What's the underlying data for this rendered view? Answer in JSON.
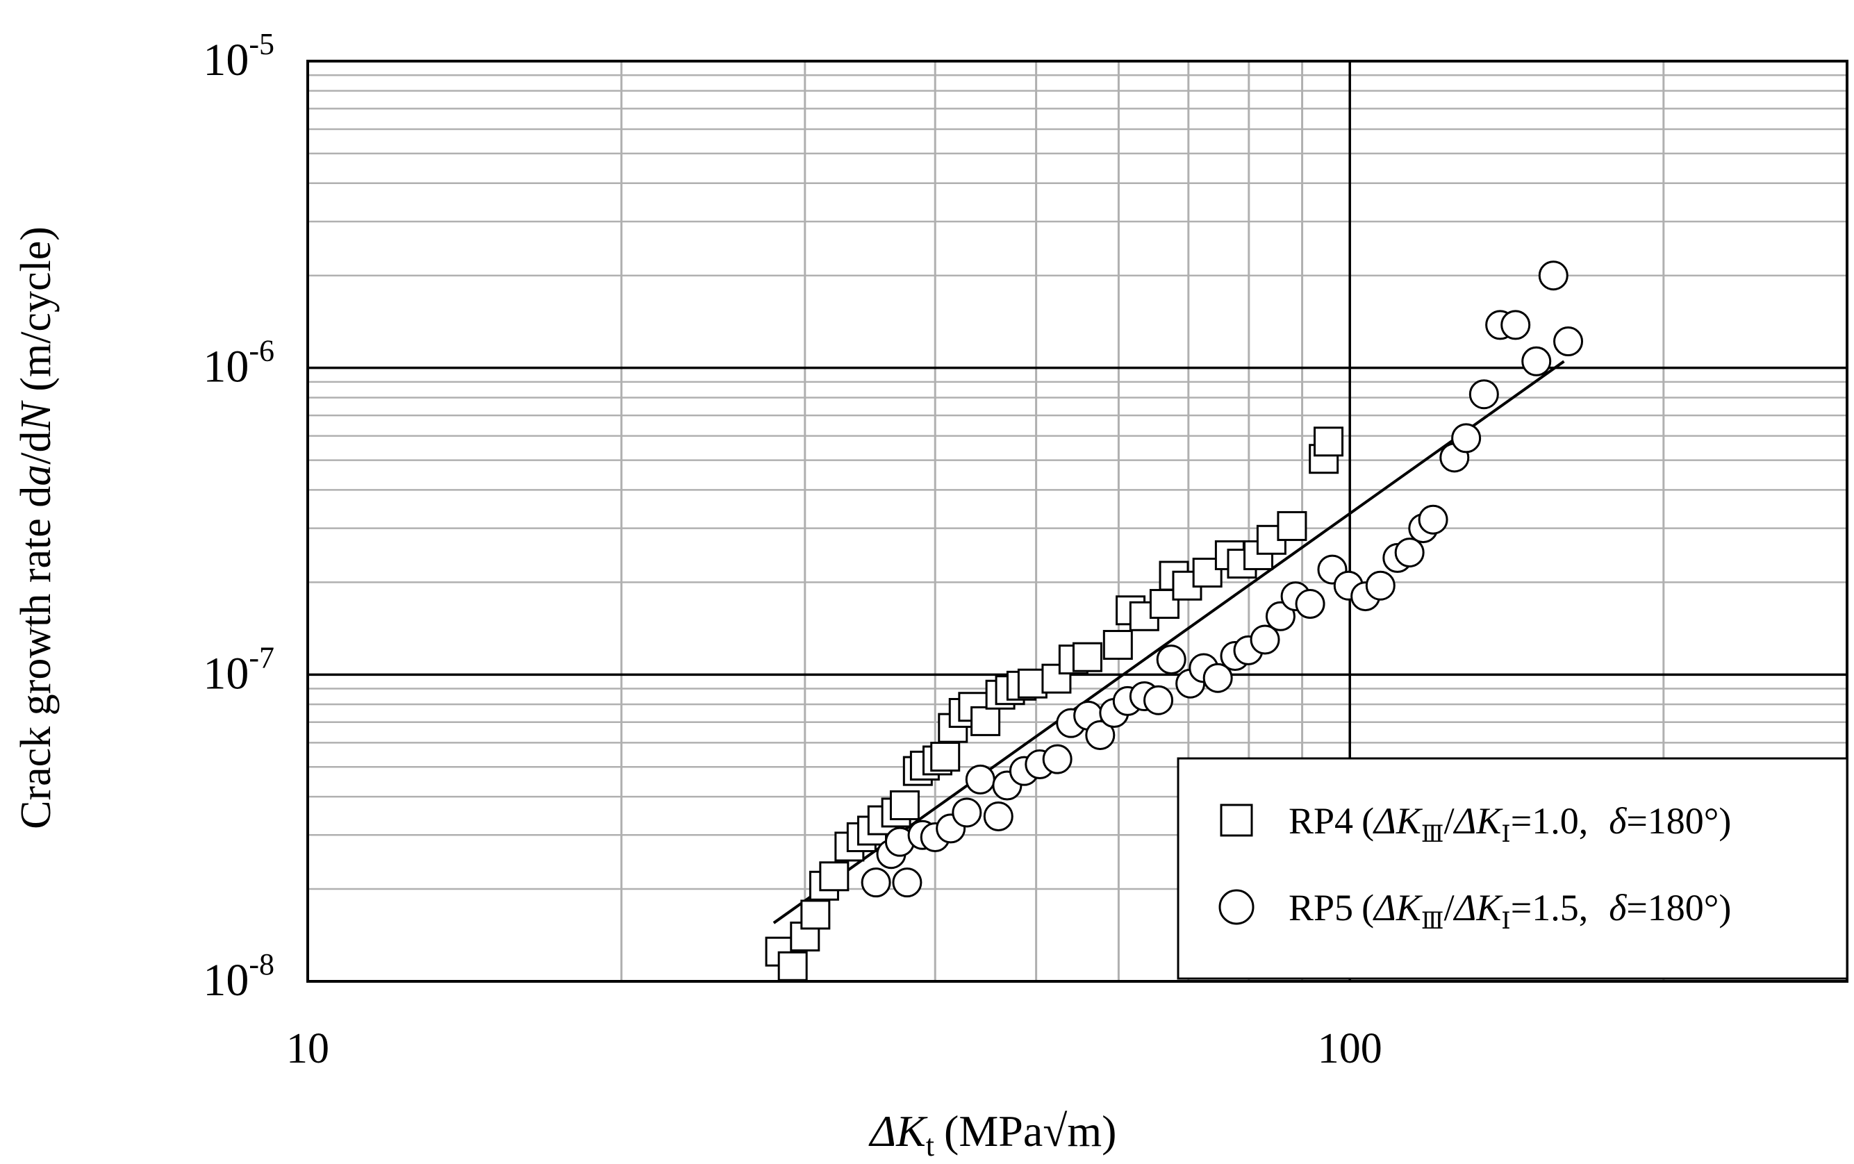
{
  "chart_data": {
    "type": "scatter",
    "xscale": "log",
    "yscale": "log",
    "xlim": [
      10,
      300
    ],
    "ylim": [
      1e-08,
      1e-05
    ],
    "grid": true,
    "legend_position": "bottom-right",
    "xlabel": {
      "delta": "ΔK",
      "sub": "t",
      "unit": "(MPa√m)"
    },
    "ylabel": {
      "pre": "Crack growth rate d",
      "a": "a",
      "mid": "/d",
      "n": "N",
      "unit": " (m/cycle)"
    },
    "x_tick_labels": [
      {
        "value": 10,
        "label": "10"
      },
      {
        "value": 100,
        "label": "100"
      }
    ],
    "y_tick_labels": [
      {
        "value": 1e-05,
        "base": "10",
        "exp": "-5"
      },
      {
        "value": 1e-06,
        "base": "10",
        "exp": "-6"
      },
      {
        "value": 1e-07,
        "base": "10",
        "exp": "-7"
      },
      {
        "value": 1e-08,
        "base": "10",
        "exp": "-8"
      }
    ],
    "series": [
      {
        "name": "RP4",
        "marker": "square",
        "legend": {
          "label": "RP4",
          "ratio_value": "=1.0,",
          "delta_value": "=180°"
        },
        "points": [
          [
            28.4,
            1.25e-08
          ],
          [
            29.2,
            1.12e-08
          ],
          [
            30.0,
            1.4e-08
          ],
          [
            30.7,
            1.65e-08
          ],
          [
            31.3,
            2.05e-08
          ],
          [
            32.0,
            2.2e-08
          ],
          [
            33.1,
            2.75e-08
          ],
          [
            34.0,
            2.95e-08
          ],
          [
            34.8,
            3.1e-08
          ],
          [
            35.6,
            3.35e-08
          ],
          [
            36.7,
            3.55e-08
          ],
          [
            37.4,
            3.75e-08
          ],
          [
            38.5,
            4.85e-08
          ],
          [
            39.1,
            5.05e-08
          ],
          [
            40.2,
            5.25e-08
          ],
          [
            40.9,
            5.4e-08
          ],
          [
            41.6,
            6.7e-08
          ],
          [
            42.6,
            7.5e-08
          ],
          [
            43.5,
            7.85e-08
          ],
          [
            44.7,
            7.05e-08
          ],
          [
            46.2,
            8.6e-08
          ],
          [
            47.2,
            8.9e-08
          ],
          [
            48.4,
            9.2e-08
          ],
          [
            49.6,
            9.35e-08
          ],
          [
            52.3,
            9.7e-08
          ],
          [
            54.3,
            1.12e-07
          ],
          [
            56.0,
            1.14e-07
          ],
          [
            59.9,
            1.25e-07
          ],
          [
            61.6,
            1.62e-07
          ],
          [
            63.5,
            1.55e-07
          ],
          [
            66.4,
            1.7e-07
          ],
          [
            67.8,
            2.1e-07
          ],
          [
            69.8,
            1.95e-07
          ],
          [
            73.0,
            2.15e-07
          ],
          [
            76.7,
            2.45e-07
          ],
          [
            78.8,
            2.3e-07
          ],
          [
            81.7,
            2.45e-07
          ],
          [
            84.1,
            2.75e-07
          ],
          [
            88.0,
            3.05e-07
          ],
          [
            94.4,
            5.05e-07
          ],
          [
            95.4,
            5.75e-07
          ]
        ]
      },
      {
        "name": "RP5",
        "marker": "circle",
        "legend": {
          "label": "RP5",
          "ratio_value": "=1.5,",
          "delta_value": "=180°"
        },
        "points": [
          [
            35.1,
            2.1e-08
          ],
          [
            36.3,
            2.6e-08
          ],
          [
            37.0,
            2.85e-08
          ],
          [
            37.6,
            2.1e-08
          ],
          [
            38.9,
            3e-08
          ],
          [
            40.0,
            2.95e-08
          ],
          [
            41.4,
            3.15e-08
          ],
          [
            42.9,
            3.55e-08
          ],
          [
            44.2,
            4.55e-08
          ],
          [
            46.0,
            3.45e-08
          ],
          [
            46.9,
            4.35e-08
          ],
          [
            48.7,
            4.85e-08
          ],
          [
            50.4,
            5.1e-08
          ],
          [
            52.4,
            5.3e-08
          ],
          [
            54.0,
            6.95e-08
          ],
          [
            56.1,
            7.35e-08
          ],
          [
            57.6,
            6.35e-08
          ],
          [
            59.4,
            7.5e-08
          ],
          [
            61.2,
            8.2e-08
          ],
          [
            63.5,
            8.5e-08
          ],
          [
            65.5,
            8.25e-08
          ],
          [
            67.4,
            1.12e-07
          ],
          [
            70.3,
            9.35e-08
          ],
          [
            72.4,
            1.05e-07
          ],
          [
            74.7,
            9.75e-08
          ],
          [
            77.6,
            1.15e-07
          ],
          [
            79.9,
            1.2e-07
          ],
          [
            82.9,
            1.3e-07
          ],
          [
            85.8,
            1.55e-07
          ],
          [
            88.7,
            1.8e-07
          ],
          [
            91.6,
            1.7e-07
          ],
          [
            96.2,
            2.2e-07
          ],
          [
            99.7,
            1.95e-07
          ],
          [
            103.5,
            1.8e-07
          ],
          [
            107.0,
            1.95e-07
          ],
          [
            111.1,
            2.4e-07
          ],
          [
            114.1,
            2.5e-07
          ],
          [
            117.6,
            3e-07
          ],
          [
            120.2,
            3.2e-07
          ],
          [
            126.0,
            5.1e-07
          ],
          [
            129.3,
            5.9e-07
          ],
          [
            134.5,
            8.2e-07
          ],
          [
            139.4,
            1.38e-06
          ],
          [
            144.2,
            1.38e-06
          ],
          [
            151.0,
            1.05e-06
          ],
          [
            156.8,
            2e-06
          ],
          [
            162.0,
            1.22e-06
          ]
        ]
      },
      {
        "type": "line",
        "style": "fit",
        "points": [
          [
            28.0,
            1.55e-08
          ],
          [
            160.5,
            1.05e-06
          ]
        ]
      }
    ]
  }
}
